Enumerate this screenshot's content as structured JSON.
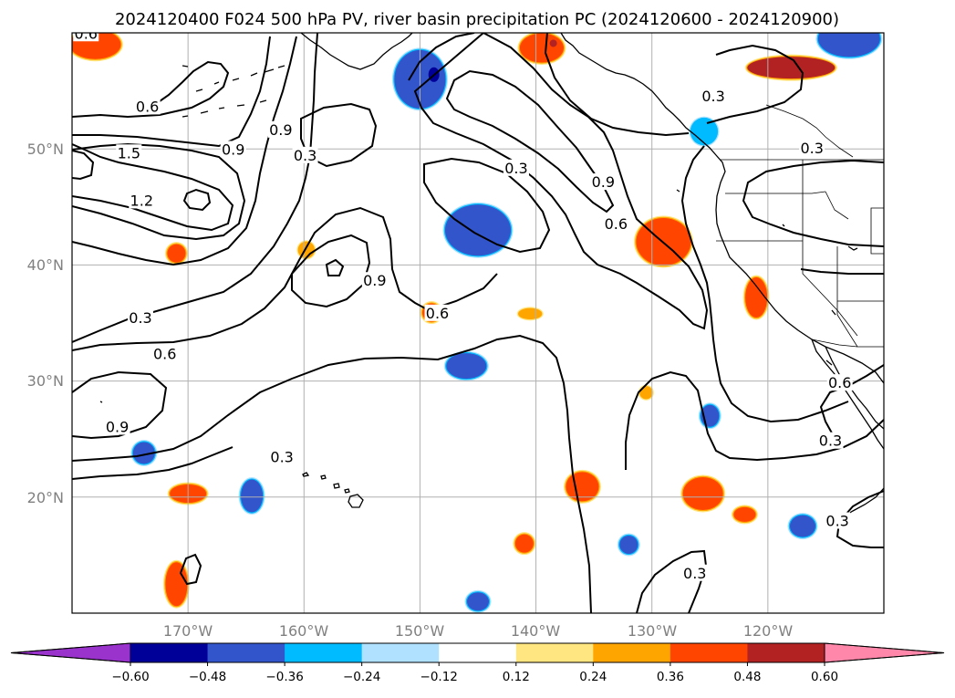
{
  "title": "2024120400 F024 500 hPa PV, river basin precipitation PC (2024120600 - 2024120900)",
  "map": {
    "lon_range": [
      -180,
      -110
    ],
    "lat_range": [
      10,
      60
    ],
    "lat_ticks": [
      "20°N",
      "30°N",
      "40°N",
      "50°N"
    ],
    "lon_ticks": [
      "170°W",
      "160°W",
      "150°W",
      "140°W",
      "130°W",
      "120°W"
    ],
    "contour_field": "500 hPa PV",
    "contour_labels": [
      {
        "text": "0.6",
        "lon": -178.8,
        "lat": 59.9
      },
      {
        "text": "0.6",
        "lon": -173.5,
        "lat": 53.6
      },
      {
        "text": "1.5",
        "lon": -175.1,
        "lat": 49.6
      },
      {
        "text": "0.9",
        "lon": -166.1,
        "lat": 49.9
      },
      {
        "text": "0.9",
        "lon": -162.0,
        "lat": 51.6
      },
      {
        "text": "0.3",
        "lon": -159.9,
        "lat": 49.4
      },
      {
        "text": "1.2",
        "lon": -174.0,
        "lat": 45.5
      },
      {
        "text": "0.9",
        "lon": -153.9,
        "lat": 38.6
      },
      {
        "text": "0.3",
        "lon": -174.1,
        "lat": 35.4
      },
      {
        "text": "0.6",
        "lon": -172.0,
        "lat": 32.3
      },
      {
        "text": "0.9",
        "lon": -176.1,
        "lat": 26.0
      },
      {
        "text": "0.3",
        "lon": -161.9,
        "lat": 23.4
      },
      {
        "text": "0.6",
        "lon": -148.5,
        "lat": 35.8
      },
      {
        "text": "0.3",
        "lon": -141.7,
        "lat": 48.3
      },
      {
        "text": "0.9",
        "lon": -134.2,
        "lat": 47.1
      },
      {
        "text": "0.6",
        "lon": -133.1,
        "lat": 43.5
      },
      {
        "text": "0.3",
        "lon": -124.7,
        "lat": 54.5
      },
      {
        "text": "0.3",
        "lon": -116.2,
        "lat": 50.0
      },
      {
        "text": "0.6",
        "lon": -113.8,
        "lat": 29.8
      },
      {
        "text": "0.3",
        "lon": -114.6,
        "lat": 24.8
      },
      {
        "text": "0.3",
        "lon": -114.0,
        "lat": 17.9
      },
      {
        "text": "0.3",
        "lon": -126.3,
        "lat": 13.4
      }
    ]
  },
  "colorbar": {
    "label_field": "river basin precipitation PC",
    "ticks": [
      "−0.60",
      "−0.48",
      "−0.36",
      "−0.24",
      "−0.12",
      "0.12",
      "0.24",
      "0.36",
      "0.48",
      "0.60"
    ],
    "levels": [
      -0.6,
      -0.48,
      -0.36,
      -0.24,
      -0.12,
      0.12,
      0.24,
      0.36,
      0.48,
      0.6
    ],
    "colors": [
      "#9933cc",
      "#000099",
      "#3355cc",
      "#00bbff",
      "#b0e2ff",
      "#ffffff",
      "#ffe680",
      "#ffa500",
      "#ff4500",
      "#b22222",
      "#ff88aa"
    ],
    "extend": "both"
  },
  "precip_blobs": [
    {
      "lon": -178.0,
      "lat": 59.0,
      "bin": 8
    },
    {
      "lon": -139.5,
      "lat": 58.7,
      "bin": 8
    },
    {
      "lon": -118.0,
      "lat": 57.0,
      "bin": 9
    },
    {
      "lon": -129.0,
      "lat": 42.0,
      "bin": 8
    },
    {
      "lon": -121.0,
      "lat": 37.2,
      "bin": 8
    },
    {
      "lon": -171.0,
      "lat": 41.0,
      "bin": 8
    },
    {
      "lon": -159.8,
      "lat": 41.3,
      "bin": 7
    },
    {
      "lon": -149.0,
      "lat": 35.9,
      "bin": 8
    },
    {
      "lon": -140.5,
      "lat": 35.8,
      "bin": 7
    },
    {
      "lon": -170.0,
      "lat": 20.3,
      "bin": 8
    },
    {
      "lon": -136.0,
      "lat": 20.9,
      "bin": 8
    },
    {
      "lon": -125.6,
      "lat": 20.3,
      "bin": 8
    },
    {
      "lon": -141.0,
      "lat": 16.0,
      "bin": 8
    },
    {
      "lon": -171.0,
      "lat": 12.5,
      "bin": 8
    },
    {
      "lon": -122.0,
      "lat": 18.5,
      "bin": 8
    },
    {
      "lon": -130.5,
      "lat": 29.0,
      "bin": 7
    },
    {
      "lon": -150.0,
      "lat": 56.0,
      "bin": 2
    },
    {
      "lon": -145.0,
      "lat": 43.0,
      "bin": 2
    },
    {
      "lon": -146.0,
      "lat": 31.3,
      "bin": 2
    },
    {
      "lon": -173.8,
      "lat": 23.8,
      "bin": 2
    },
    {
      "lon": -164.5,
      "lat": 20.1,
      "bin": 2
    },
    {
      "lon": -132.0,
      "lat": 15.9,
      "bin": 2
    },
    {
      "lon": -145.0,
      "lat": 11.0,
      "bin": 2
    },
    {
      "lon": -117.0,
      "lat": 17.5,
      "bin": 2
    },
    {
      "lon": -113.0,
      "lat": 59.5,
      "bin": 2
    },
    {
      "lon": -125.5,
      "lat": 51.5,
      "bin": 3
    },
    {
      "lon": -125.0,
      "lat": 27.0,
      "bin": 2
    }
  ]
}
